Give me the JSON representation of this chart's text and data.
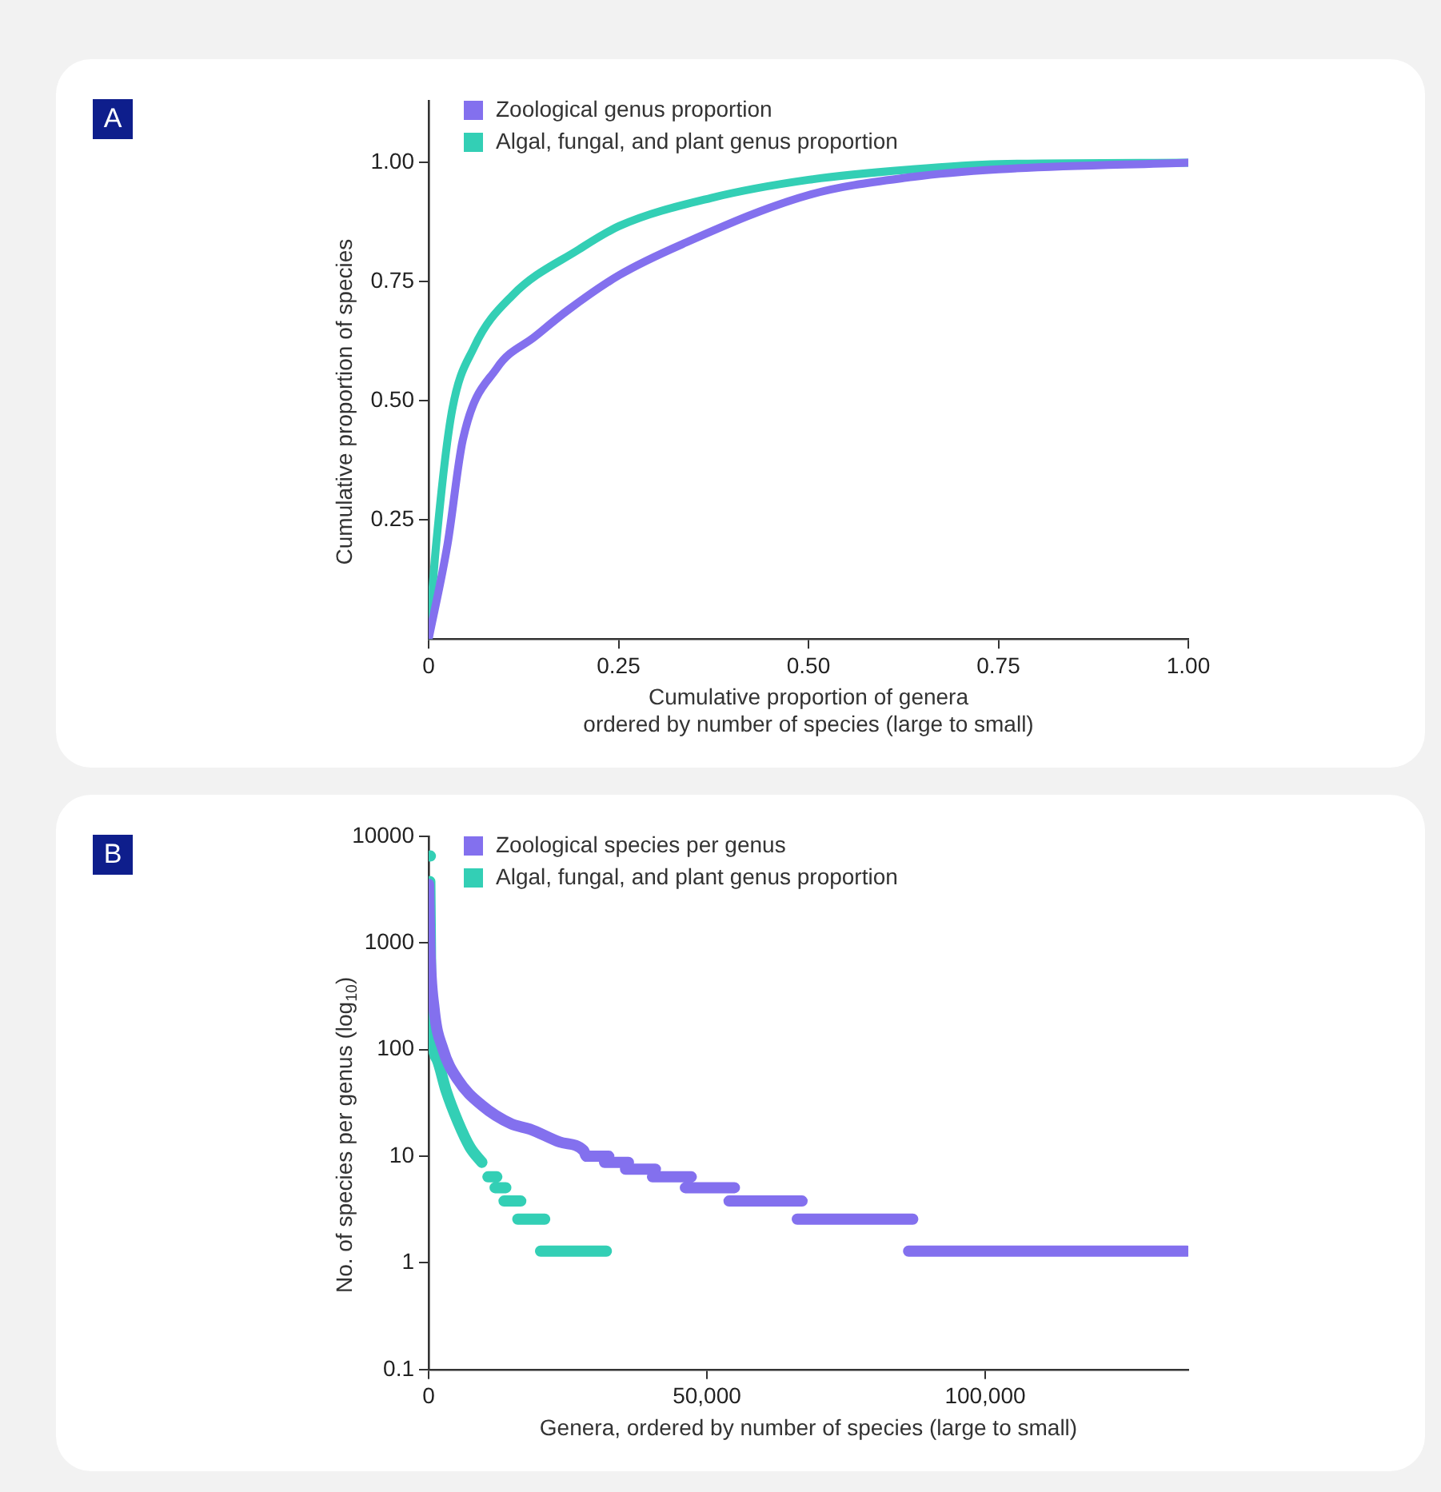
{
  "chart_data": [
    {
      "type": "line",
      "annotations": [
        "A"
      ],
      "xlabel": "Cumulative proportion of genera\nordered by number of species (large to small)",
      "ylabel": "Cumulative proportion of species",
      "xlim": [
        0,
        1.0
      ],
      "ylim": [
        0,
        1.13
      ],
      "xticks": [
        0,
        0.25,
        {
          "value": 0.5,
          "label": "0.50"
        },
        0.75,
        {
          "value": 1.0,
          "label": "1.00"
        }
      ],
      "yticks": [
        0.25,
        {
          "value": 0.5,
          "label": "0.50"
        },
        0.75,
        {
          "value": 1.0,
          "label": "1.00"
        }
      ],
      "grid": false,
      "legend": "top left",
      "marker": "none",
      "line_style": "solid",
      "series": [
        {
          "name": "Zoological genus proportion",
          "color": "#8370ee",
          "x": [
            0,
            0.025,
            0.045,
            0.09,
            0.14,
            0.183,
            0.251,
            0.334,
            0.5,
            0.637,
            0.75,
            1.0
          ],
          "values": [
            0,
            0.2,
            0.418,
            0.569,
            0.635,
            0.69,
            0.764,
            0.829,
            0.932,
            0.97,
            0.986,
            1.0
          ]
        },
        {
          "name": "Algal, fungal, and plant genus proportion",
          "color": "#33cfb5",
          "x": [
            0,
            0.01,
            0.03,
            0.06,
            0.11,
            0.198,
            0.251,
            0.372,
            0.5,
            0.637,
            0.75,
            1.0
          ],
          "values": [
            0,
            0.2,
            0.472,
            0.613,
            0.721,
            0.818,
            0.867,
            0.926,
            0.964,
            0.986,
            0.997,
            1.0
          ]
        }
      ]
    },
    {
      "type": "line",
      "annotations": [
        "B"
      ],
      "xlabel": "Genera, ordered by number of species (large to small)",
      "ylabel": "No. of species per genus (log$_{10}$)",
      "xlim": [
        0,
        136500
      ],
      "ylim": [
        0.1,
        10000
      ],
      "log": "y",
      "xticks": [
        0,
        {
          "value": 50000,
          "label": "50,000"
        },
        {
          "value": 100000,
          "label": "100,000"
        }
      ],
      "yticks": [
        0.1,
        1,
        10,
        100,
        1000,
        10000
      ],
      "grid": false,
      "legend": "top left",
      "marker": "none",
      "line_style": "solid",
      "series": [
        {
          "name": "Zoological species per genus",
          "color": "#8370ee",
          "x": [
            0,
            215,
            968,
            2580,
            5270,
            9570,
            14950,
            18170,
            23550,
            27850,
            28390,
            32370,
            32000,
            31610,
            35910,
            35600,
            35380,
            40750,
            40500,
            40220,
            47200,
            46600,
            46130,
            54950,
            54500,
            53980,
            67100,
            66700,
            66240,
            86990,
            86600,
            86240,
            136240
          ],
          "values": [
            3550,
            935,
            246,
            101,
            52,
            30,
            20,
            18,
            13.6,
            11.3,
            10,
            10,
            null,
            8.77,
            8.77,
            null,
            7.57,
            7.57,
            null,
            6.41,
            6.41,
            null,
            5.07,
            5.07,
            null,
            3.8,
            3.8,
            null,
            2.57,
            2.57,
            null,
            1.29,
            1.29
          ]
        },
        {
          "name": "Algal, fungal, and plant genus proportion",
          "color": "#33cfb5",
          "x": [
            320,
            270,
            215,
            320,
            430,
            1510,
            3120,
            5270,
            7420,
            9570,
            10100,
            10650,
            12260,
            12100,
            11940,
            13870,
            13700,
            13550,
            16560,
            16300,
            16020,
            20860,
            20500,
            20110,
            31940
          ],
          "values": [
            6540,
            null,
            3770,
            935,
            220,
            81,
            41.5,
            21,
            12.2,
            8.77,
            null,
            6.41,
            6.41,
            null,
            5.07,
            5.07,
            null,
            3.8,
            3.8,
            null,
            2.57,
            2.57,
            null,
            1.29,
            1.29
          ]
        }
      ]
    }
  ]
}
